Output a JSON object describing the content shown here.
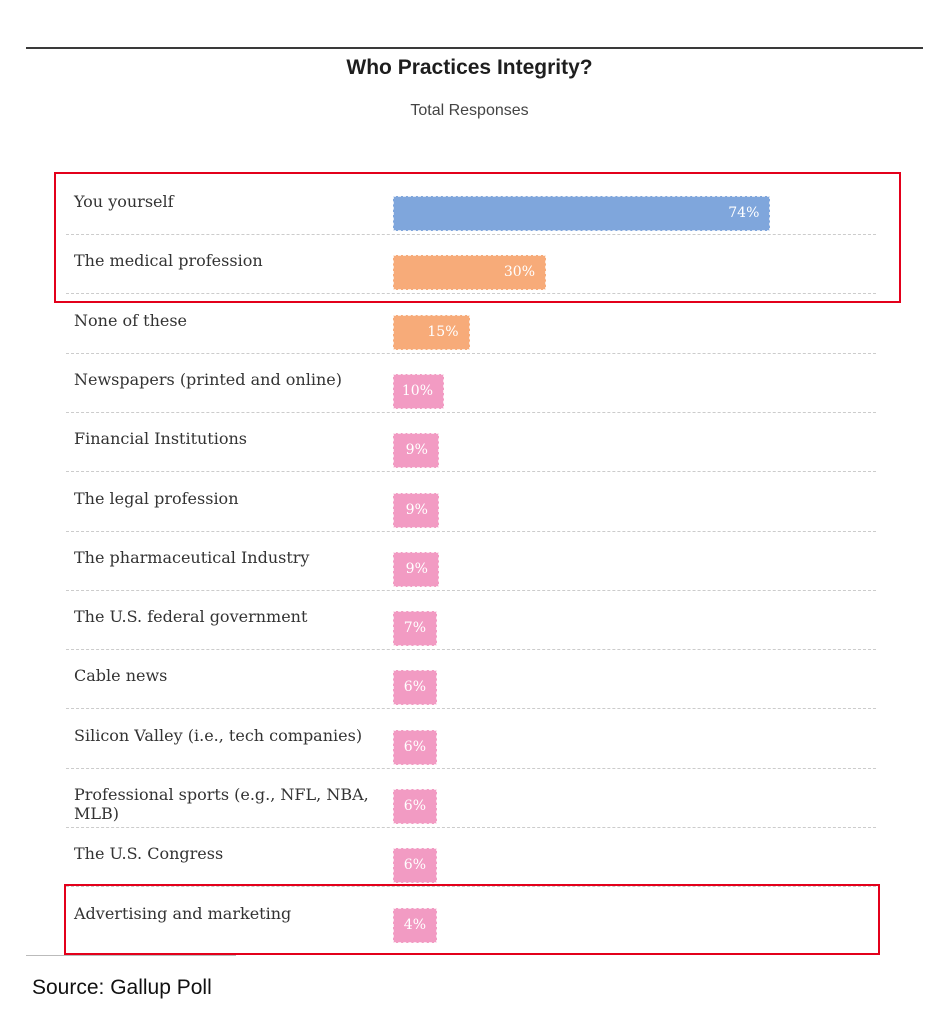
{
  "chart_data": {
    "type": "bar",
    "orientation": "horizontal",
    "title": "Who Practices Integrity?",
    "subtitle": "Total Responses",
    "categories": [
      "You yourself",
      "The medical profession",
      "None of these",
      "Newspapers (printed and online)",
      "Financial Institutions",
      "The legal profession",
      "The pharmaceutical Industry",
      "The U.S. federal government",
      "Cable news",
      "Silicon Valley (i.e., tech companies)",
      "Professional sports (e.g., NFL, NBA, MLB)",
      "The U.S. Congress",
      "Advertising and marketing"
    ],
    "values": [
      74,
      30,
      15,
      10,
      9,
      9,
      9,
      7,
      6,
      6,
      6,
      6,
      4
    ],
    "value_labels": [
      "74%",
      "30%",
      "15%",
      "10%",
      "9%",
      "9%",
      "9%",
      "7%",
      "6%",
      "6%",
      "6%",
      "6%",
      "4%"
    ],
    "bar_colors": [
      "#7fa6dc",
      "#f7ab79",
      "#f7ab79",
      "#f29bc3",
      "#f29bc3",
      "#f29bc3",
      "#f29bc3",
      "#f29bc3",
      "#f29bc3",
      "#f29bc3",
      "#f29bc3",
      "#f29bc3",
      "#f29bc3"
    ],
    "xlim": [
      0,
      100
    ],
    "grid": false,
    "highlighted_categories": [
      [
        "You yourself",
        "The medical profession"
      ],
      [
        "Advertising and marketing"
      ]
    ],
    "highlight_color": "#e3001b"
  },
  "source": "Source: Gallup Poll"
}
